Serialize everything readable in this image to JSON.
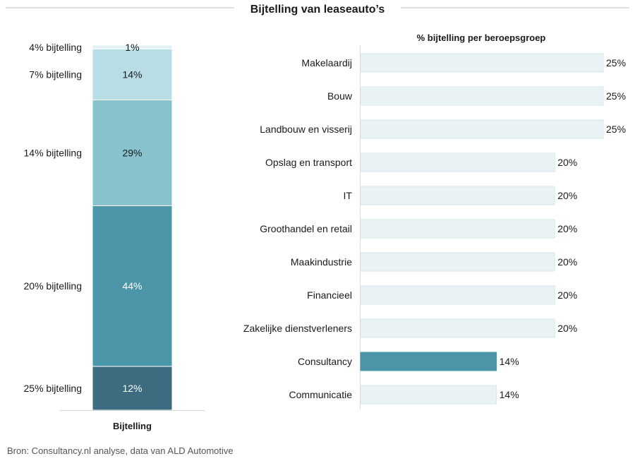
{
  "title": "Bijtelling van leaseauto’s",
  "source": "Bron: Consultancy.nl analyse, data van ALD Automotive",
  "chart_data": [
    {
      "type": "stacked-bar",
      "title": "",
      "xlabel": "Bijtelling",
      "categories": [
        "Bijtelling"
      ],
      "ylim": [
        0,
        100
      ],
      "unit": "%",
      "series": [
        {
          "name": "25% bijtelling",
          "values": [
            12
          ],
          "label": "12%",
          "color": "#3d6b80"
        },
        {
          "name": "20% bijtelling",
          "values": [
            44
          ],
          "label": "44%",
          "color": "#4a95a8"
        },
        {
          "name": "14% bijtelling",
          "values": [
            29
          ],
          "label": "29%",
          "color": "#88c2cc"
        },
        {
          "name": "7% bijtelling",
          "values": [
            14
          ],
          "label": "14%",
          "color": "#b8dde4"
        },
        {
          "name": "4% bijtelling",
          "values": [
            1
          ],
          "label": "1%",
          "color": "#e2f1f4"
        }
      ]
    },
    {
      "type": "bar",
      "orientation": "horizontal",
      "title": "% bijtelling per beroepsgroep",
      "xlim": [
        0,
        25
      ],
      "unit": "%",
      "categories": [
        "Makelaardij",
        "Bouw",
        "Landbouw en visserij",
        "Opslag en transport",
        "IT",
        "Groothandel en retail",
        "Maakindustrie",
        "Financieel",
        "Zakelijke dienstverleners",
        "Consultancy",
        "Communicatie"
      ],
      "values": [
        25,
        25,
        25,
        20,
        20,
        20,
        20,
        20,
        20,
        14,
        14
      ],
      "value_labels": [
        "25%",
        "25%",
        "25%",
        "20%",
        "20%",
        "20%",
        "20%",
        "20%",
        "20%",
        "14%",
        "14%"
      ],
      "highlight": "Consultancy",
      "colors": {
        "normal": "#e9f3f5",
        "normal_border": "#d6e8ec",
        "highlight": "#4a95a8"
      }
    }
  ]
}
